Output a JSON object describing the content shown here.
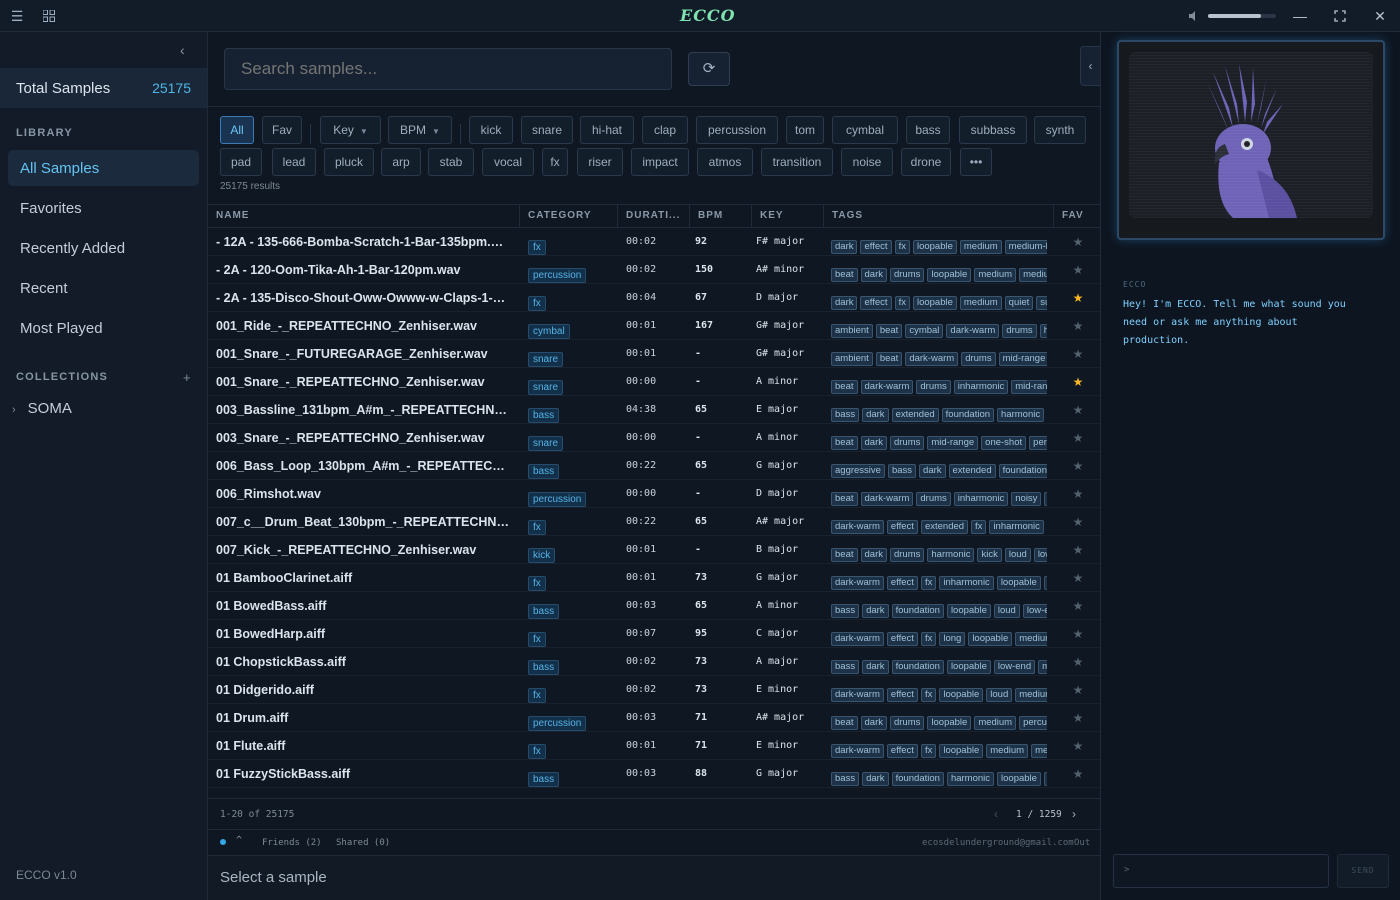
{
  "app": {
    "logo": "ECCO"
  },
  "titlebar": {
    "volume": 0.78
  },
  "sidebar": {
    "total_label": "Total Samples",
    "total_value": "25175",
    "library_heading": "LIBRARY",
    "library": [
      "All Samples",
      "Favorites",
      "Recently Added",
      "Recent",
      "Most Played"
    ],
    "collections_heading": "COLLECTIONS",
    "collections": [
      "SOMA"
    ],
    "version": "ECCO v1.0"
  },
  "search": {
    "placeholder": "Search samples..."
  },
  "filters": {
    "row1": [
      "All",
      "Fav",
      "kick",
      "snare",
      "hi-hat",
      "clap",
      "percussion",
      "tom",
      "cymbal",
      "bass",
      "subbass",
      "synth"
    ],
    "key_label": "Key",
    "bpm_label": "BPM",
    "row2": [
      "pad",
      "lead",
      "pluck",
      "arp",
      "stab",
      "vocal",
      "fx",
      "riser",
      "impact",
      "atmos",
      "transition",
      "noise",
      "drone"
    ],
    "more": "•••",
    "results": "25175 results"
  },
  "table": {
    "headers": [
      "NAME",
      "CATEGORY",
      "DURATI...",
      "BPM",
      "KEY",
      "TAGS",
      "FAV"
    ],
    "rows": [
      {
        "name": "- 12A - 135-666-Bomba-Scratch-1-Bar-135bpm.wav",
        "category": "fx",
        "duration": "00:02",
        "bpm": "92",
        "key": "F# major",
        "tags": [
          "dark",
          "effect",
          "fx",
          "loopable",
          "medium",
          "medium-long"
        ],
        "fav": false
      },
      {
        "name": "- 2A - 120-Oom-Tika-Ah-1-Bar-120pm.wav",
        "category": "percussion",
        "duration": "00:02",
        "bpm": "150",
        "key": "A# minor",
        "tags": [
          "beat",
          "dark",
          "drums",
          "loopable",
          "medium",
          "medium"
        ],
        "fav": false
      },
      {
        "name": "- 2A - 135-Disco-Shout-Oww-Owww-w-Claps-1-Bar.wav",
        "category": "fx",
        "duration": "00:04",
        "bpm": "67",
        "key": "D major",
        "tags": [
          "dark",
          "effect",
          "fx",
          "loopable",
          "medium",
          "quiet",
          "sub"
        ],
        "fav": true
      },
      {
        "name": "001_Ride_-_REPEATTECHNO_Zenhiser.wav",
        "category": "cymbal",
        "duration": "00:01",
        "bpm": "167",
        "key": "G# major",
        "tags": [
          "ambient",
          "beat",
          "cymbal",
          "dark-warm",
          "drums",
          "hi"
        ],
        "fav": false
      },
      {
        "name": "001_Snare_-_FUTUREGARAGE_Zenhiser.wav",
        "category": "snare",
        "duration": "00:01",
        "bpm": "-",
        "key": "G# major",
        "tags": [
          "ambient",
          "beat",
          "dark-warm",
          "drums",
          "mid-range"
        ],
        "fav": false
      },
      {
        "name": "001_Snare_-_REPEATTECHNO_Zenhiser.wav",
        "category": "snare",
        "duration": "00:00",
        "bpm": "-",
        "key": "A minor",
        "tags": [
          "beat",
          "dark-warm",
          "drums",
          "inharmonic",
          "mid-range"
        ],
        "fav": true
      },
      {
        "name": "003_Bassline_131bpm_A#m_-_REPEATTECHNO_Zenhiser.wav",
        "category": "bass",
        "duration": "04:38",
        "bpm": "65",
        "key": "E major",
        "tags": [
          "bass",
          "dark",
          "extended",
          "foundation",
          "harmonic",
          "lo"
        ],
        "fav": false
      },
      {
        "name": "003_Snare_-_REPEATTECHNO_Zenhiser.wav",
        "category": "snare",
        "duration": "00:00",
        "bpm": "-",
        "key": "A minor",
        "tags": [
          "beat",
          "dark",
          "drums",
          "mid-range",
          "one-shot",
          "perc"
        ],
        "fav": false
      },
      {
        "name": "006_Bass_Loop_130bpm_A#m_-_REPEATTECHNO.wav",
        "category": "bass",
        "duration": "00:22",
        "bpm": "65",
        "key": "G major",
        "tags": [
          "aggressive",
          "bass",
          "dark",
          "extended",
          "foundation",
          "l"
        ],
        "fav": false
      },
      {
        "name": "006_Rimshot.wav",
        "category": "percussion",
        "duration": "00:00",
        "bpm": "-",
        "key": "D major",
        "tags": [
          "beat",
          "dark-warm",
          "drums",
          "inharmonic",
          "noisy",
          "o"
        ],
        "fav": false
      },
      {
        "name": "007_c__Drum_Beat_130bpm_-_REPEATTECHNO.wav",
        "category": "fx",
        "duration": "00:22",
        "bpm": "65",
        "key": "A# major",
        "tags": [
          "dark-warm",
          "effect",
          "extended",
          "fx",
          "inharmonic",
          "r"
        ],
        "fav": false
      },
      {
        "name": "007_Kick_-_REPEATTECHNO_Zenhiser.wav",
        "category": "kick",
        "duration": "00:01",
        "bpm": "-",
        "key": "B major",
        "tags": [
          "beat",
          "dark",
          "drums",
          "harmonic",
          "kick",
          "loud",
          "low-"
        ],
        "fav": false
      },
      {
        "name": "01 BambooClarinet.aiff",
        "category": "fx",
        "duration": "00:01",
        "bpm": "73",
        "key": "G major",
        "tags": [
          "dark-warm",
          "effect",
          "fx",
          "inharmonic",
          "loopable",
          "m"
        ],
        "fav": false
      },
      {
        "name": "01 BowedBass.aiff",
        "category": "bass",
        "duration": "00:03",
        "bpm": "65",
        "key": "A minor",
        "tags": [
          "bass",
          "dark",
          "foundation",
          "loopable",
          "loud",
          "low-end"
        ],
        "fav": false
      },
      {
        "name": "01 BowedHarp.aiff",
        "category": "fx",
        "duration": "00:07",
        "bpm": "95",
        "key": "C major",
        "tags": [
          "dark-warm",
          "effect",
          "fx",
          "long",
          "loopable",
          "medium"
        ],
        "fav": false
      },
      {
        "name": "01 ChopstickBass.aiff",
        "category": "bass",
        "duration": "00:02",
        "bpm": "73",
        "key": "A major",
        "tags": [
          "bass",
          "dark",
          "foundation",
          "loopable",
          "low-end",
          "me"
        ],
        "fav": false
      },
      {
        "name": "01 Didgerido.aiff",
        "category": "fx",
        "duration": "00:02",
        "bpm": "73",
        "key": "E minor",
        "tags": [
          "dark-warm",
          "effect",
          "fx",
          "loopable",
          "loud",
          "medium"
        ],
        "fav": false
      },
      {
        "name": "01 Drum.aiff",
        "category": "percussion",
        "duration": "00:03",
        "bpm": "71",
        "key": "A# major",
        "tags": [
          "beat",
          "dark",
          "drums",
          "loopable",
          "medium",
          "percuss"
        ],
        "fav": false
      },
      {
        "name": "01 Flute.aiff",
        "category": "fx",
        "duration": "00:01",
        "bpm": "71",
        "key": "E minor",
        "tags": [
          "dark-warm",
          "effect",
          "fx",
          "loopable",
          "medium",
          "med"
        ],
        "fav": false
      },
      {
        "name": "01 FuzzyStickBass.aiff",
        "category": "bass",
        "duration": "00:03",
        "bpm": "88",
        "key": "G major",
        "tags": [
          "bass",
          "dark",
          "foundation",
          "harmonic",
          "loopable",
          "lo"
        ],
        "fav": false
      }
    ]
  },
  "pager": {
    "info": "1-20 of 25175",
    "page": "1 / 1259"
  },
  "social": {
    "friends": "Friends (2)",
    "shared": "Shared (0)",
    "email": "ecosdelunderground@gmail.com",
    "out": "Out"
  },
  "now_playing": "Select a sample",
  "chat": {
    "label": "ECCO",
    "message": "Hey! I'm ECCO. Tell me what sound you need or ask me anything about production.",
    "prompt": ">",
    "send": "SEND"
  }
}
